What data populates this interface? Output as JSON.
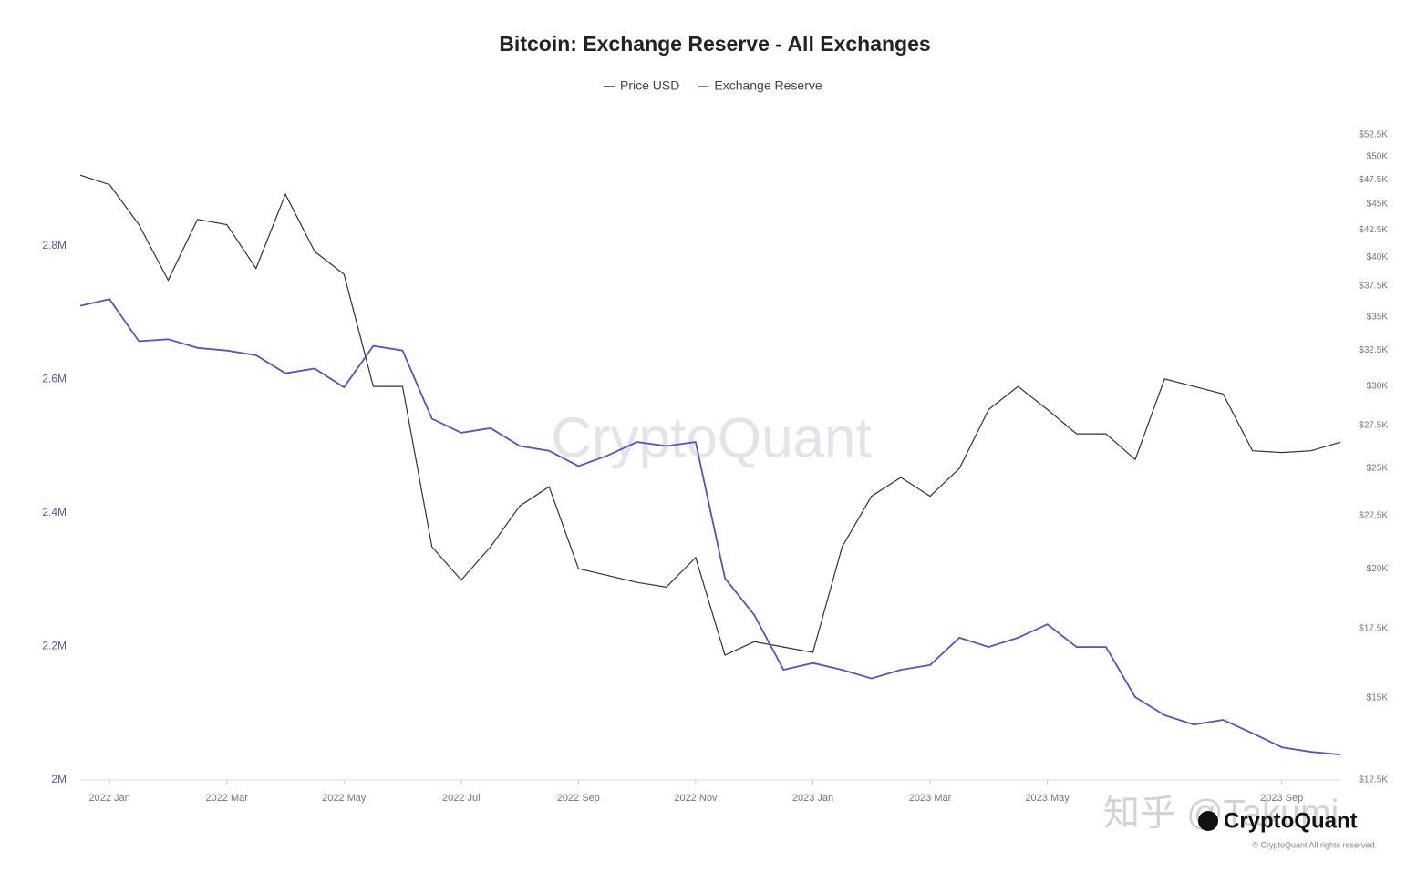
{
  "chart_data": {
    "type": "line",
    "title": "Bitcoin: Exchange Reserve - All Exchanges",
    "watermark": "CryptoQuant",
    "logo": "CryptoQuant",
    "copyright": "© CryptoQuant All rights reserved.",
    "overlay_watermark": "知乎 @Takumi",
    "categories": [
      null,
      "2022 Jan",
      null,
      null,
      null,
      "2022 Mar",
      null,
      null,
      null,
      "2022 May",
      null,
      null,
      null,
      "2022 Jul",
      null,
      null,
      null,
      "2022 Sep",
      null,
      null,
      null,
      "2022 Nov",
      null,
      null,
      null,
      "2023 Jan",
      null,
      null,
      null,
      "2023 Mar",
      null,
      null,
      null,
      "2023 May",
      null,
      null,
      null,
      null,
      null,
      null,
      null,
      "2023 Sep",
      null,
      null
    ],
    "series": [
      {
        "name": "Price USD",
        "color": "#333333",
        "axis": "y2",
        "values": [
          48000,
          47000,
          43000,
          38000,
          43500,
          43000,
          39000,
          46000,
          40500,
          38500,
          30000,
          30000,
          21000,
          19500,
          21000,
          23000,
          24000,
          20000,
          19700,
          19400,
          19200,
          20500,
          16500,
          17000,
          16800,
          16600,
          21000,
          23500,
          24500,
          23500,
          25000,
          28500,
          30000,
          28500,
          27000,
          27000,
          25500,
          30500,
          30000,
          29500,
          26000,
          25900,
          26000,
          26500
        ]
      },
      {
        "name": "Exchange Reserve",
        "color": "#5a4fc4",
        "values": [
          2710000,
          2720000,
          2657000,
          2660000,
          2647000,
          2643000,
          2636000,
          2609000,
          2616000,
          2588000,
          2650000,
          2643000,
          2541000,
          2520000,
          2527000,
          2500000,
          2493000,
          2470000,
          2486000,
          2506000,
          2500000,
          2506000,
          2302000,
          2247000,
          2165000,
          2175000,
          2165000,
          2152000,
          2165000,
          2172000,
          2213000,
          2199000,
          2213000,
          2233000,
          2199000,
          2199000,
          2124000,
          2097000,
          2083000,
          2090000,
          2070000,
          2049000,
          2042000,
          2038000
        ]
      }
    ],
    "ylim": [
      2000000,
      2966000
    ],
    "yticks": [
      {
        "value": 2000000,
        "label": "2M"
      },
      {
        "value": 2200000,
        "label": "2.2M"
      },
      {
        "value": 2400000,
        "label": "2.4M"
      },
      {
        "value": 2600000,
        "label": "2.6M"
      },
      {
        "value": 2800000,
        "label": "2.8M"
      }
    ],
    "y2lim": [
      12500,
      52500
    ],
    "y2_log": true,
    "y2ticks": [
      {
        "value": 12500,
        "label": "$12.5K"
      },
      {
        "value": 15000,
        "label": "$15K"
      },
      {
        "value": 17500,
        "label": "$17.5K"
      },
      {
        "value": 20000,
        "label": "$20K"
      },
      {
        "value": 22500,
        "label": "$22.5K"
      },
      {
        "value": 25000,
        "label": "$25K"
      },
      {
        "value": 27500,
        "label": "$27.5K"
      },
      {
        "value": 30000,
        "label": "$30K"
      },
      {
        "value": 32500,
        "label": "$32.5K"
      },
      {
        "value": 35000,
        "label": "$35K"
      },
      {
        "value": 37500,
        "label": "$37.5K"
      },
      {
        "value": 40000,
        "label": "$40K"
      },
      {
        "value": 42500,
        "label": "$42.5K"
      },
      {
        "value": 45000,
        "label": "$45K"
      },
      {
        "value": 47500,
        "label": "$47.5K"
      },
      {
        "value": 50000,
        "label": "$50K"
      },
      {
        "value": 52500,
        "label": "$52.5K"
      }
    ]
  }
}
